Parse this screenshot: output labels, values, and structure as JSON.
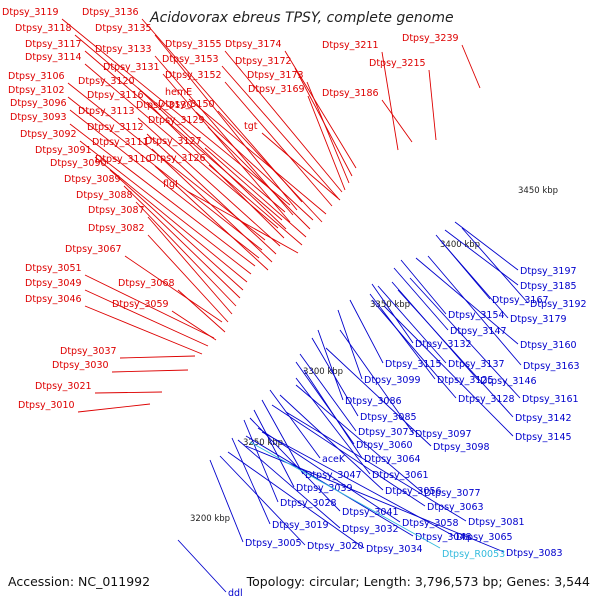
{
  "title": "Acidovorax ebreus TPSY, complete genome",
  "accession_text": "Accession: NC_011992",
  "summary_text": "Topology: circular; Length: 3,796,573 bp; Genes: 3,544",
  "colors": {
    "forward_label": "#dd0000",
    "reverse_label": "#0000cc",
    "rna_label": "#33bbdd",
    "backbone": "#9a9a9a",
    "forward_gene": "#ee1111",
    "reverse_gene": "#1133ee",
    "tick_mark": "#228822"
  },
  "scale_labels": [
    "3450 kbp",
    "3400 kbp",
    "3350 kbp",
    "3300 kbp",
    "3250 kbp",
    "3200 kbp"
  ],
  "forward_labels": [
    "Dtpsy_3119",
    "Dtpsy_3136",
    "Dtpsy_3118",
    "Dtpsy_3135",
    "Dtpsy_3117",
    "Dtpsy_3133",
    "Dtpsy_3155",
    "Dtpsy_3174",
    "Dtpsy_3114",
    "Dtpsy_3153",
    "Dtpsy_3172",
    "Dtpsy_3131",
    "Dtpsy_3106",
    "Dtpsy_3152",
    "Dtpsy_3173",
    "Dtpsy_3120",
    "Dtpsy_3102",
    "hemE",
    "Dtpsy_3169",
    "Dtpsy_3116",
    "Dtpsy_3096",
    "Dtpsy_3150",
    "Dtpsy_3113",
    "Dtpsy_3130",
    "Dtpsy_3093",
    "Dtpsy_3129",
    "tgt",
    "Dtpsy_3112",
    "Dtpsy_3092",
    "Dtpsy_3127",
    "Dtpsy_3111",
    "Dtpsy_3091",
    "Dtpsy_3126",
    "Dtpsy_3110",
    "Dtpsy_3090",
    "Dtpsy_3089",
    "flgI",
    "Dtpsy_3088",
    "Dtpsy_3087",
    "Dtpsy_3082",
    "Dtpsy_3067",
    "Dtpsy_3051",
    "Dtpsy_3068",
    "Dtpsy_3049",
    "Dtpsy_3046",
    "Dtpsy_3059",
    "Dtpsy_3037",
    "Dtpsy_3030",
    "Dtpsy_3021",
    "Dtpsy_3010",
    "Dtpsy_3211",
    "Dtpsy_3239",
    "Dtpsy_3215",
    "Dtpsy_3186"
  ],
  "reverse_labels": [
    "Dtpsy_3197",
    "Dtpsy_3185",
    "Dtpsy_3167",
    "Dtpsy_3192",
    "Dtpsy_3179",
    "Dtpsy_3154",
    "Dtpsy_3147",
    "Dtpsy_3132",
    "Dtpsy_3160",
    "Dtpsy_3137",
    "Dtpsy_3115",
    "Dtpsy_3163",
    "Dtpsy_3099",
    "Dtpsy_3125",
    "Dtpsy_3146",
    "Dtpsy_3128",
    "Dtpsy_3161",
    "Dtpsy_3086",
    "Dtpsy_3142",
    "Dtpsy_3085",
    "Dtpsy_3073",
    "Dtpsy_3097",
    "Dtpsy_3145",
    "Dtpsy_3060",
    "Dtpsy_3098",
    "aceK",
    "Dtpsy_3064",
    "Dtpsy_3047",
    "Dtpsy_3061",
    "Dtpsy_3039",
    "Dtpsy_3056",
    "Dtpsy_3077",
    "Dtpsy_3028",
    "Dtpsy_3063",
    "Dtpsy_3041",
    "Dtpsy_3019",
    "Dtpsy_3058",
    "Dtpsy_3081",
    "Dtpsy_3032",
    "Dtpsy_3048",
    "Dtpsy_3065",
    "Dtpsy_3005",
    "Dtpsy_3020",
    "Dtpsy_3034",
    "Dtpsy_3083",
    "ddl"
  ],
  "rna_labels": [
    "Dtpsy_R0053"
  ]
}
